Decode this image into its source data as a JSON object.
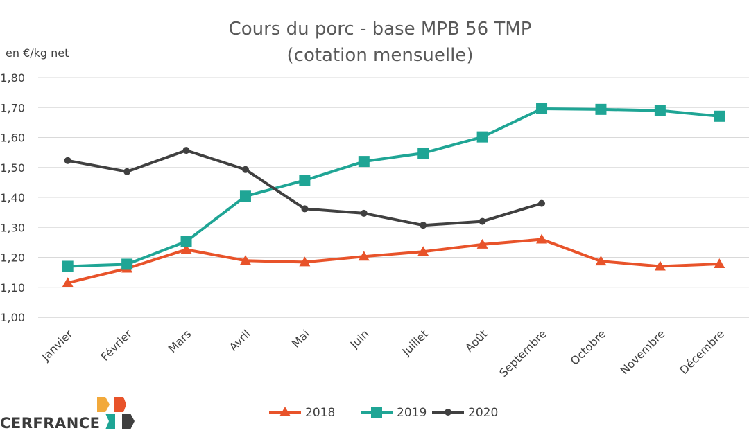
{
  "chart_data": {
    "type": "line",
    "title": "Cours du porc - base MPB 56 TMP",
    "subtitle": "(cotation mensuelle)",
    "ylabel": "en €/kg net",
    "xlabel": "",
    "categories": [
      "Janvier",
      "Février",
      "Mars",
      "Avril",
      "Mai",
      "Juin",
      "Juillet",
      "Août",
      "Septembre",
      "Octobre",
      "Novembre",
      "Décembre"
    ],
    "ylim": [
      1.0,
      1.8
    ],
    "yticks": [
      1.0,
      1.1,
      1.2,
      1.3,
      1.4,
      1.5,
      1.6,
      1.7,
      1.8
    ],
    "ytick_labels": [
      "1,00",
      "1,10",
      "1,20",
      "1,30",
      "1,40",
      "1,50",
      "1,60",
      "1,70",
      "1,80"
    ],
    "grid": true,
    "legend_position": "bottom",
    "series": [
      {
        "name": "2018",
        "color": "#E8532A",
        "marker": "triangle",
        "values": [
          1.115,
          1.163,
          1.226,
          1.189,
          1.184,
          1.203,
          1.219,
          1.243,
          1.26,
          1.187,
          1.17,
          1.178
        ]
      },
      {
        "name": "2019",
        "color": "#1FA595",
        "marker": "square",
        "values": [
          1.17,
          1.177,
          1.253,
          1.404,
          1.457,
          1.52,
          1.548,
          1.602,
          1.696,
          1.694,
          1.69,
          1.671
        ]
      },
      {
        "name": "2020",
        "color": "#404040",
        "marker": "circle",
        "values": [
          1.523,
          1.486,
          1.557,
          1.493,
          1.362,
          1.347,
          1.307,
          1.32,
          1.38,
          null,
          null,
          null
        ]
      }
    ]
  },
  "logo": {
    "text": "CERFRANCE",
    "colors": [
      "#F2A93B",
      "#E8532A",
      "#1FA595",
      "#404040"
    ]
  }
}
